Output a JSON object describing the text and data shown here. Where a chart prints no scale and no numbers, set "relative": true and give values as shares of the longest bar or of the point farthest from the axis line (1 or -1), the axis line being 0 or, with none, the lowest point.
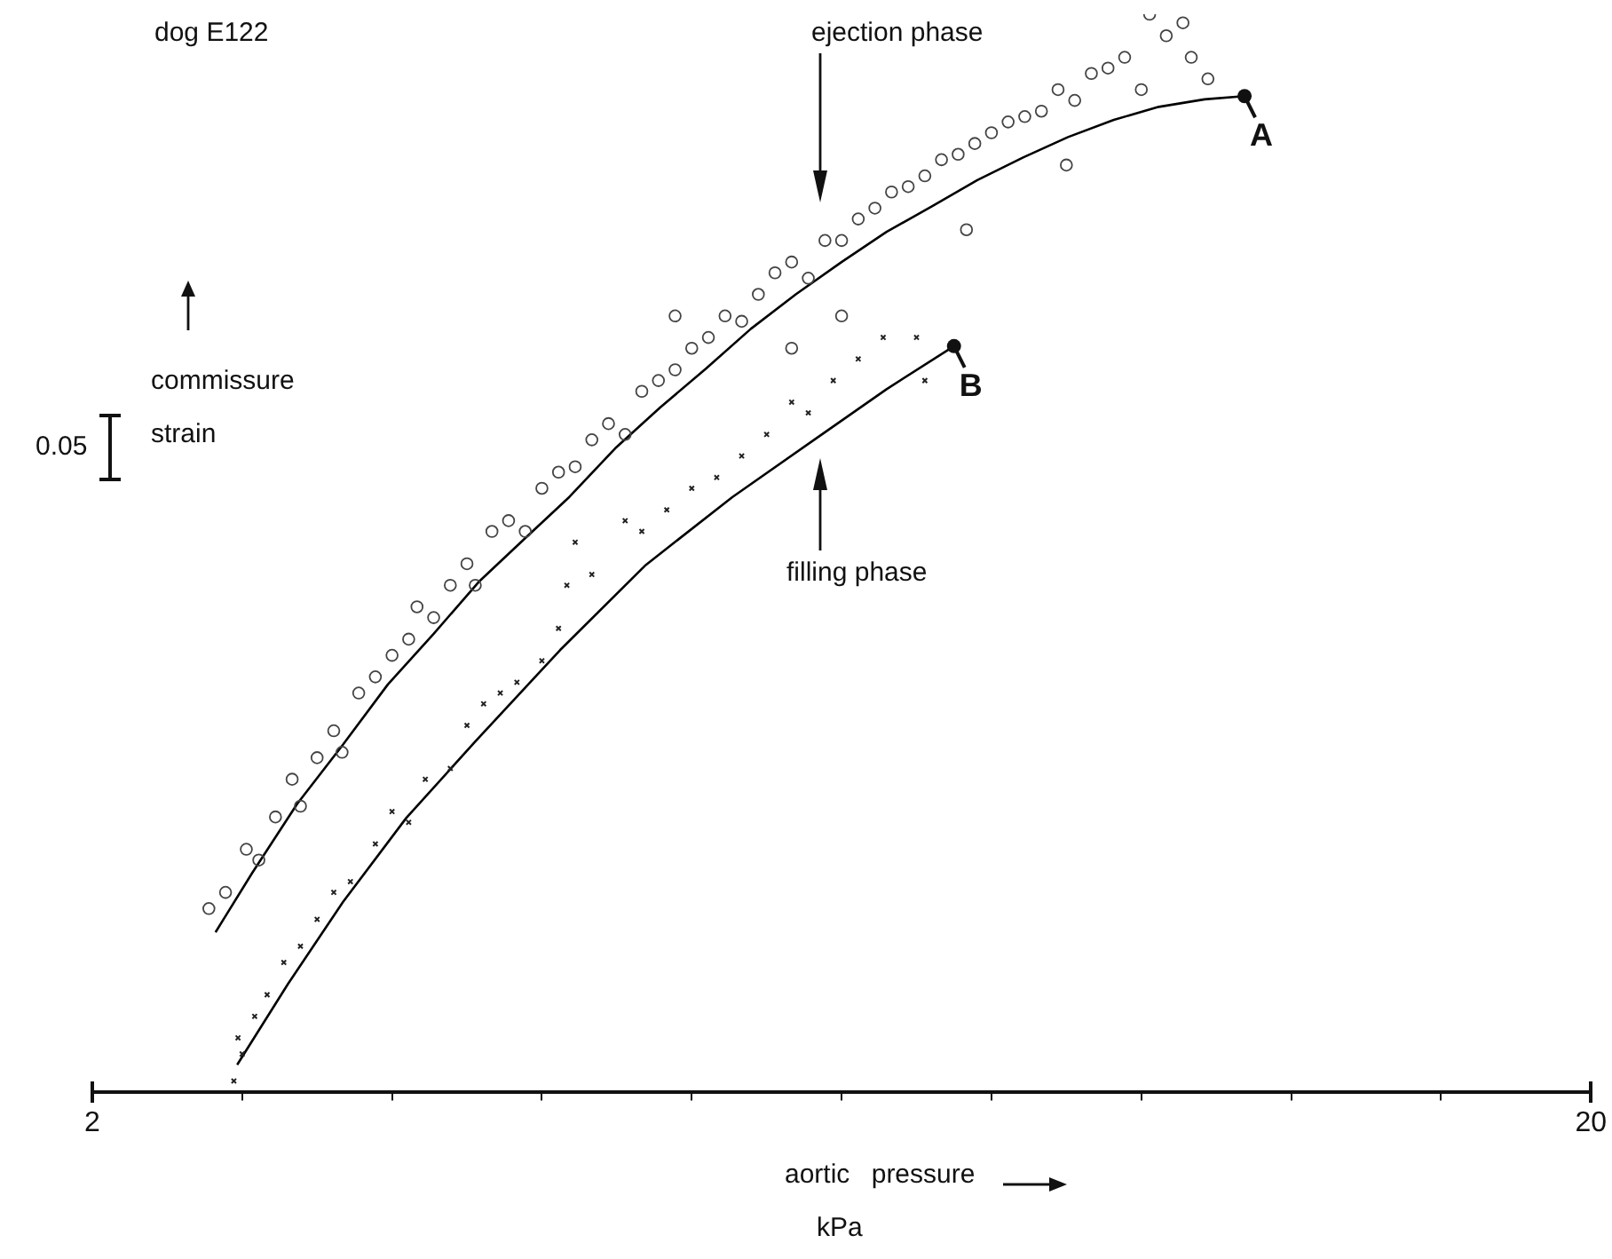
{
  "chart_data": {
    "type": "scatter",
    "title": "dog E122",
    "xlabel": "aortic pressure",
    "ylabel": "commissure strain",
    "relative": true,
    "legend": false,
    "grid": false,
    "xlim": [
      2,
      20
    ],
    "xticks": [
      2,
      {
        "value": 3.8,
        "label": null
      },
      {
        "value": 5.6,
        "label": null
      },
      {
        "value": 7.4,
        "label": null
      },
      {
        "value": 9.2,
        "label": null
      },
      {
        "value": 11,
        "label": null
      },
      {
        "value": 12.8,
        "label": null
      },
      {
        "value": 14.6,
        "label": null
      },
      {
        "value": 16.4,
        "label": null
      },
      {
        "value": 18.2,
        "label": null
      },
      20
    ],
    "annotations": [
      "0.05",
      "kPa",
      "ejection phase",
      "filling phase",
      {
        "text": "A",
        "x": 15.84,
        "y": 0.924
      },
      {
        "text": "B",
        "x": 12.35,
        "y": 0.692
      }
    ],
    "series": [
      {
        "marker": "circle",
        "color": "#444444",
        "x": [
          3.4,
          3.6,
          3.85,
          4.0,
          4.2,
          4.4,
          4.5,
          4.7,
          4.9,
          5.0,
          5.2,
          5.4,
          5.6,
          5.8,
          5.9,
          6.1,
          6.3,
          6.5,
          6.6,
          6.8,
          7.0,
          7.2,
          7.4,
          7.6,
          7.8,
          8.0,
          8.2,
          8.4,
          8.6,
          8.8,
          9.0,
          9.2,
          9.4,
          9.6,
          9.8,
          10.0,
          10.2,
          10.4,
          10.6,
          10.8,
          11.0,
          11.2,
          11.4,
          11.0,
          11.6,
          11.8,
          12.0,
          12.2,
          12.4,
          12.6,
          12.8,
          13.0,
          13.2,
          13.4,
          13.6,
          13.8,
          14.0,
          14.2,
          14.4,
          14.6,
          14.7,
          14.9,
          15.1,
          15.2,
          15.4,
          13.7,
          12.5,
          10.4,
          9.0
        ],
        "values": [
          0.17,
          0.185,
          0.225,
          0.215,
          0.255,
          0.29,
          0.265,
          0.31,
          0.335,
          0.315,
          0.37,
          0.385,
          0.405,
          0.42,
          0.45,
          0.44,
          0.47,
          0.49,
          0.47,
          0.52,
          0.53,
          0.52,
          0.56,
          0.575,
          0.58,
          0.605,
          0.62,
          0.61,
          0.65,
          0.66,
          0.67,
          0.69,
          0.7,
          0.72,
          0.715,
          0.74,
          0.76,
          0.77,
          0.755,
          0.79,
          0.79,
          0.81,
          0.82,
          0.72,
          0.835,
          0.84,
          0.85,
          0.865,
          0.87,
          0.88,
          0.89,
          0.9,
          0.905,
          0.91,
          0.93,
          0.92,
          0.945,
          0.95,
          0.96,
          0.93,
          1.0,
          0.98,
          0.992,
          0.96,
          0.94,
          0.86,
          0.8,
          0.69,
          0.72
        ]
      },
      {
        "marker": "cross",
        "color": "#222222",
        "x": [
          3.7,
          3.75,
          3.8,
          3.95,
          4.1,
          4.3,
          4.5,
          4.7,
          4.9,
          5.1,
          5.4,
          5.6,
          5.8,
          6.0,
          6.3,
          6.5,
          6.7,
          6.9,
          7.1,
          7.4,
          7.6,
          7.7,
          7.8,
          8.0,
          8.4,
          8.6,
          8.9,
          9.2,
          9.5,
          9.8,
          10.1,
          10.4,
          10.6,
          10.9,
          11.2,
          11.5,
          11.9,
          12.0
        ],
        "values": [
          0.01,
          0.05,
          0.035,
          0.07,
          0.09,
          0.12,
          0.135,
          0.16,
          0.185,
          0.195,
          0.23,
          0.26,
          0.25,
          0.29,
          0.3,
          0.34,
          0.36,
          0.37,
          0.38,
          0.4,
          0.43,
          0.47,
          0.51,
          0.48,
          0.53,
          0.52,
          0.54,
          0.56,
          0.57,
          0.59,
          0.61,
          0.64,
          0.63,
          0.66,
          0.68,
          0.7,
          0.7,
          0.66
        ]
      },
      {
        "type": "line",
        "marker": "none",
        "line_style": "solid",
        "color": "#000000",
        "x": [
          3.48,
          3.92,
          4.46,
          5.01,
          5.55,
          6.1,
          6.64,
          7.19,
          7.73,
          8.28,
          8.82,
          9.37,
          9.91,
          10.45,
          11.0,
          11.54,
          12.09,
          12.63,
          13.18,
          13.72,
          14.27,
          14.81,
          15.36,
          15.84
        ],
        "values": [
          0.148,
          0.203,
          0.267,
          0.322,
          0.378,
          0.425,
          0.473,
          0.513,
          0.552,
          0.597,
          0.635,
          0.671,
          0.708,
          0.74,
          0.77,
          0.798,
          0.822,
          0.846,
          0.867,
          0.886,
          0.902,
          0.914,
          0.921,
          0.924
        ]
      },
      {
        "type": "line",
        "marker": "none",
        "line_style": "solid",
        "color": "#000000",
        "x": [
          3.74,
          4.35,
          5.01,
          5.77,
          6.6,
          7.62,
          8.65,
          9.69,
          10.67,
          11.54,
          12.35
        ],
        "values": [
          0.025,
          0.1,
          0.176,
          0.254,
          0.325,
          0.41,
          0.489,
          0.552,
          0.605,
          0.652,
          0.692
        ]
      }
    ]
  }
}
